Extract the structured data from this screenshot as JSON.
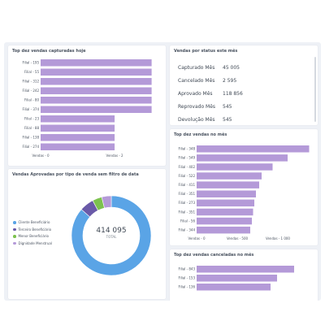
{
  "panels": {
    "top_sold": {
      "title": "Top dez vendas capturadas hoje",
      "axis_ticks": [
        "Vendas - 0",
        "Vendas - 2"
      ]
    },
    "status": {
      "title": "Vendas por status este mês",
      "rows": [
        {
          "label": "Capturado Mês",
          "value": "45 005"
        },
        {
          "label": "Cancelado Mês",
          "value": "2 595"
        },
        {
          "label": "Aprovado Mês",
          "value": "118 856"
        },
        {
          "label": "Reprovado Mês",
          "value": "545"
        },
        {
          "label": "Devolução Mês",
          "value": "545"
        }
      ]
    },
    "top_month": {
      "title": "Top dez vendas no mês",
      "axis_ticks": [
        "Vendas - 0",
        "Vendas - 500",
        "Vendas - 1 000"
      ]
    },
    "donut": {
      "title": "Vendas Aprovadas por tipo de venda sem filtro de data",
      "center_value": "414 095",
      "center_label": "TOTAL"
    },
    "top_cancelled": {
      "title": "Top dez vendas canceladas no mês"
    }
  },
  "chart_data": [
    {
      "type": "bar",
      "orientation": "horizontal",
      "title": "Top dez vendas capturadas hoje",
      "categories": [
        "Filial - 195",
        "Filial - 55",
        "Filial - 312",
        "Filial - 242",
        "Filial - 80",
        "Filial - 374",
        "Filial - 23",
        "Filial - 88",
        "Filial - 138",
        "Filial - 274"
      ],
      "values": [
        3,
        3,
        3,
        3,
        3,
        3,
        2,
        2,
        2,
        2
      ],
      "xlim": [
        0,
        3.25
      ],
      "color": "#b49ad8"
    },
    {
      "type": "bar",
      "orientation": "horizontal",
      "title": "Top dez vendas no mês",
      "categories": [
        "Filial - 348",
        "Filial - 549",
        "Filial - 402",
        "Filial - 522",
        "Filial - 411",
        "Filial - 351",
        "Filial - 273",
        "Filial - 351",
        "Filial - 56",
        "Filial - 344"
      ],
      "values": [
        1385,
        1120,
        935,
        800,
        770,
        730,
        710,
        695,
        680,
        660
      ],
      "xlim": [
        0,
        1450
      ],
      "color": "#b49ad8"
    },
    {
      "type": "pie",
      "title": "Vendas Aprovadas por tipo de venda sem filtro de data",
      "categories": [
        "Cliente Beneficiário",
        "Terceiro Beneficiário",
        "Menor Beneficiário",
        "Dignidade Menstrual"
      ],
      "values": [
        358000,
        24000,
        16000,
        16095
      ],
      "total": 414095,
      "colors": [
        "#5aa4e6",
        "#6a5aa8",
        "#7cc24e",
        "#b49ad8"
      ],
      "legend": "left"
    },
    {
      "type": "bar",
      "orientation": "horizontal",
      "title": "Top dez vendas canceladas no mês",
      "categories": [
        "Filial - 843",
        "Filial - 153",
        "Filial - 136"
      ],
      "values": [
        1200,
        990,
        910
      ],
      "xlim": [
        0,
        1450
      ],
      "color": "#b49ad8"
    }
  ],
  "colors": {
    "bar": "#b49ad8",
    "background": "#eef1f6",
    "card": "#ffffff"
  }
}
